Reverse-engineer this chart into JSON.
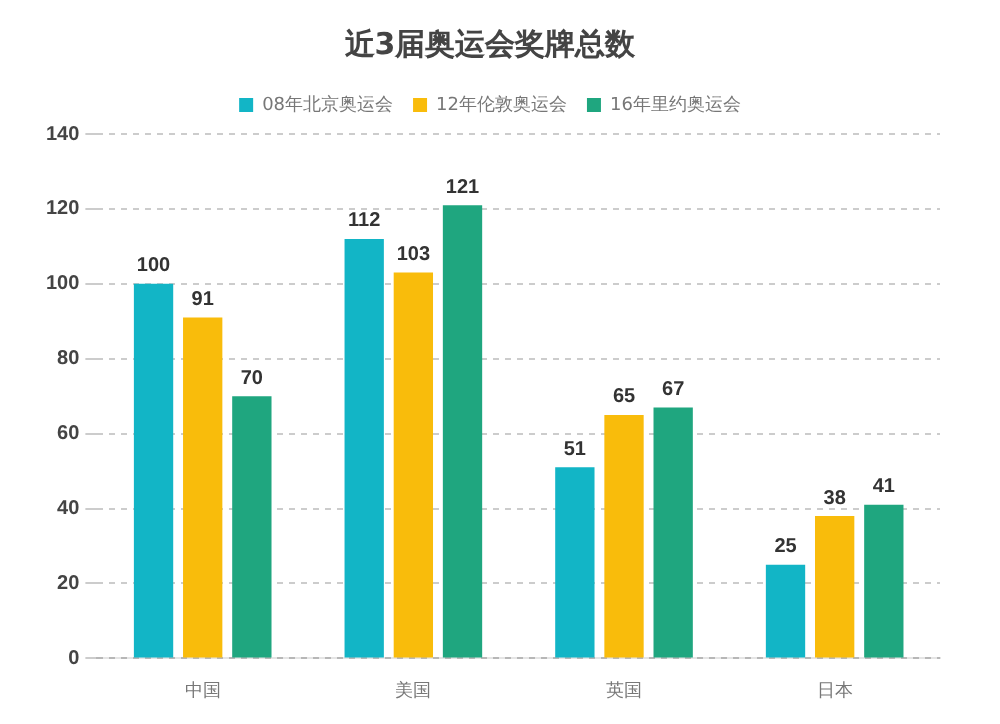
{
  "chart_data": {
    "type": "bar",
    "title": "近3届奥运会奖牌总数",
    "categories": [
      "中国",
      "美国",
      "英国",
      "日本"
    ],
    "series": [
      {
        "name": "08年北京奥运会",
        "color": "#12b5c6",
        "values": [
          100,
          112,
          51,
          25
        ]
      },
      {
        "name": "12年伦敦奥运会",
        "color": "#f9bc0b",
        "values": [
          91,
          103,
          65,
          38
        ]
      },
      {
        "name": "16年里约奥运会",
        "color": "#1fa67f",
        "values": [
          70,
          121,
          67,
          41
        ]
      }
    ],
    "ylim": [
      0,
      140
    ],
    "yticks": [
      0,
      20,
      40,
      60,
      80,
      100,
      120,
      140
    ],
    "grid": "y",
    "legend": "top",
    "data_labels": true
  }
}
